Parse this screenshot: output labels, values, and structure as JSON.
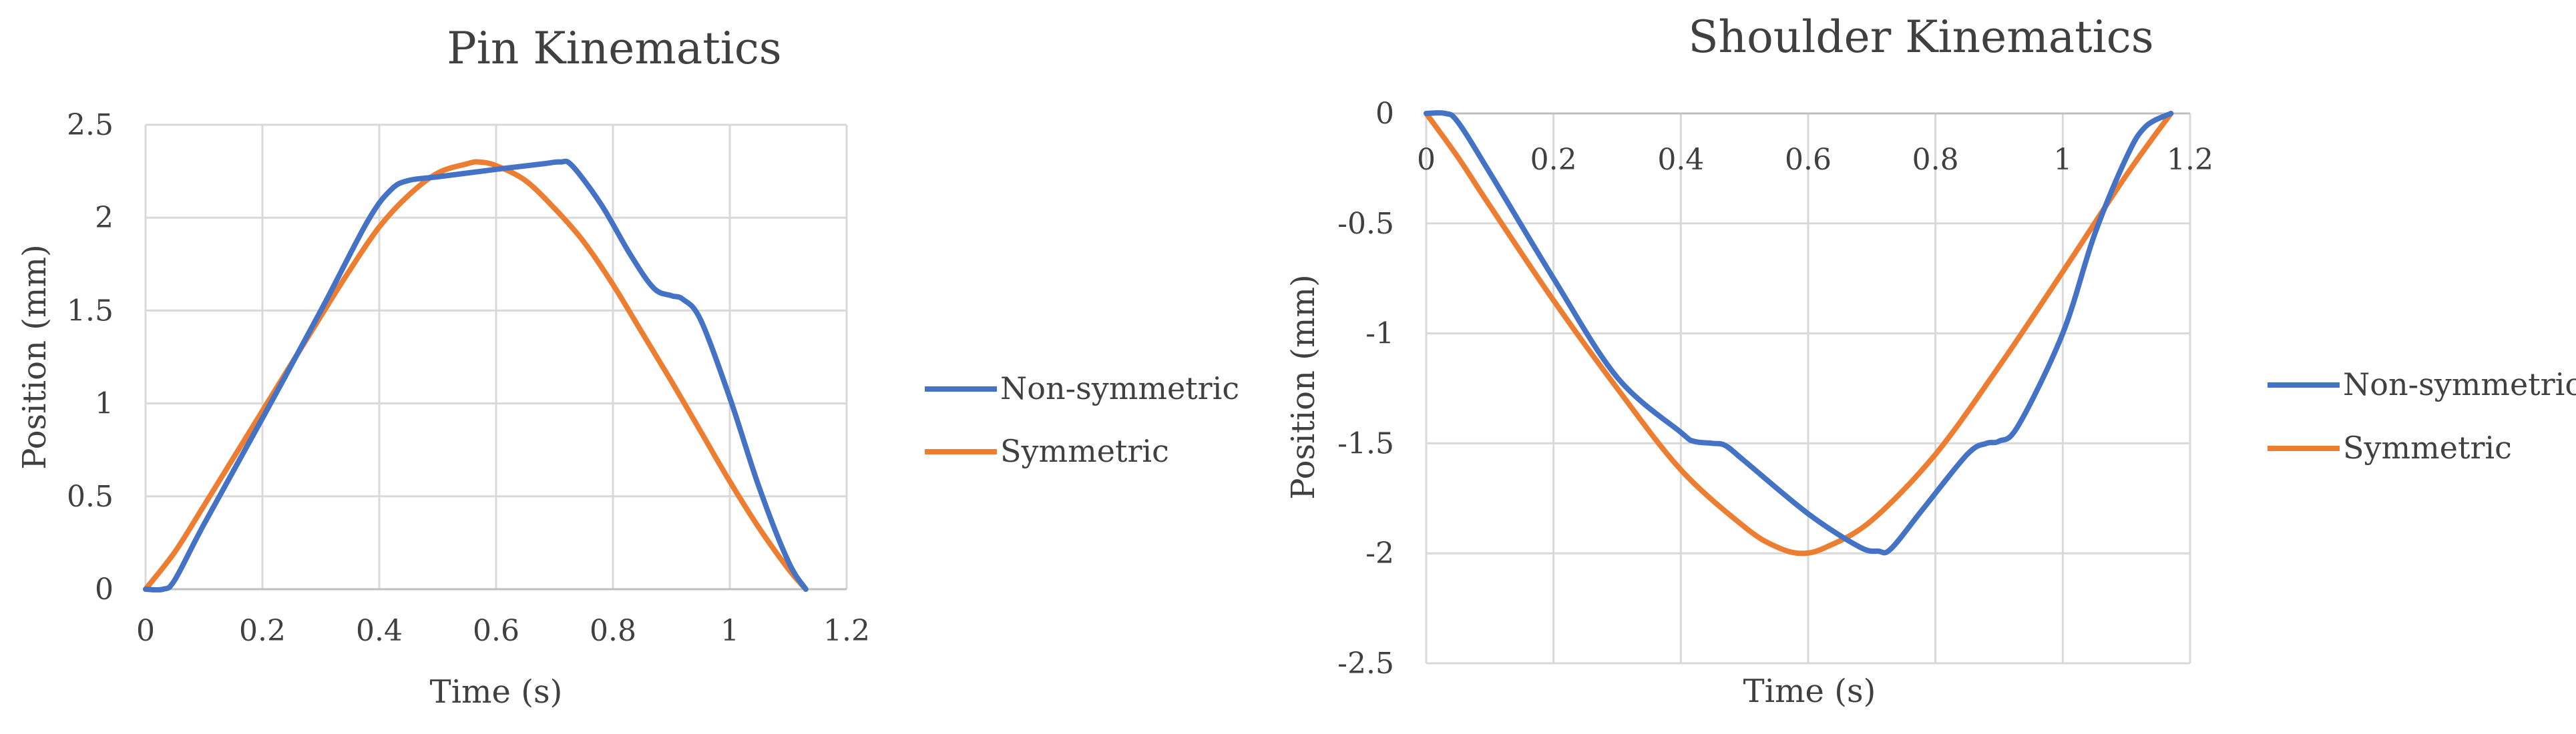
{
  "chart_data": [
    {
      "type": "line",
      "title": "Pin Kinematics",
      "xlabel": "Time (s)",
      "ylabel": "Position (mm)",
      "xlim": [
        0,
        1.2
      ],
      "ylim": [
        0,
        2.5
      ],
      "x_ticks": [
        "0",
        "0.2",
        "0.4",
        "0.6",
        "0.8",
        "1",
        "1.2"
      ],
      "y_ticks": [
        "0",
        "0.5",
        "1",
        "1.5",
        "2",
        "2.5"
      ],
      "grid": true,
      "legend_position": "right",
      "series": [
        {
          "name": "Non-symmetric",
          "color": "#4472c4",
          "x": [
            0,
            0.03,
            0.05,
            0.1,
            0.2,
            0.3,
            0.38,
            0.42,
            0.45,
            0.5,
            0.6,
            0.68,
            0.71,
            0.73,
            0.78,
            0.83,
            0.87,
            0.9,
            0.92,
            0.95,
            1.0,
            1.05,
            1.1,
            1.13
          ],
          "values": [
            0,
            0,
            0.05,
            0.35,
            0.92,
            1.5,
            1.98,
            2.15,
            2.2,
            2.22,
            2.26,
            2.29,
            2.3,
            2.28,
            2.07,
            1.8,
            1.62,
            1.58,
            1.56,
            1.45,
            1.03,
            0.55,
            0.15,
            0
          ]
        },
        {
          "name": "Symmetric",
          "color": "#ed7d31",
          "x": [
            0,
            0.05,
            0.1,
            0.2,
            0.3,
            0.35,
            0.4,
            0.45,
            0.5,
            0.55,
            0.57,
            0.6,
            0.65,
            0.7,
            0.75,
            0.8,
            0.85,
            0.9,
            0.95,
            1.0,
            1.05,
            1.1,
            1.13
          ],
          "values": [
            0,
            0.2,
            0.45,
            0.96,
            1.47,
            1.72,
            1.95,
            2.12,
            2.24,
            2.29,
            2.3,
            2.28,
            2.2,
            2.05,
            1.87,
            1.64,
            1.38,
            1.12,
            0.85,
            0.58,
            0.33,
            0.11,
            0
          ]
        }
      ]
    },
    {
      "type": "line",
      "title": "Shoulder Kinematics",
      "xlabel": "Time (s)",
      "ylabel": "Position (mm)",
      "xlim": [
        0,
        1.2
      ],
      "ylim": [
        -2.5,
        0
      ],
      "x_ticks": [
        "0",
        "0.2",
        "0.4",
        "0.6",
        "0.8",
        "1",
        "1.2"
      ],
      "y_ticks": [
        "0",
        "-0.5",
        "-1",
        "-1.5",
        "-2",
        "-2.5"
      ],
      "grid": true,
      "legend_position": "right",
      "series": [
        {
          "name": "Non-symmetric",
          "color": "#4472c4",
          "x": [
            0,
            0.03,
            0.05,
            0.1,
            0.2,
            0.3,
            0.4,
            0.42,
            0.45,
            0.47,
            0.5,
            0.6,
            0.68,
            0.71,
            0.73,
            0.78,
            0.85,
            0.88,
            0.9,
            0.93,
            1.0,
            1.05,
            1.1,
            1.13,
            1.17
          ],
          "values": [
            0,
            0,
            -0.04,
            -0.27,
            -0.75,
            -1.2,
            -1.45,
            -1.49,
            -1.5,
            -1.51,
            -1.58,
            -1.82,
            -1.97,
            -1.99,
            -1.98,
            -1.8,
            -1.55,
            -1.5,
            -1.49,
            -1.42,
            -1.0,
            -0.55,
            -0.2,
            -0.06,
            0
          ]
        },
        {
          "name": "Symmetric",
          "color": "#ed7d31",
          "x": [
            0,
            0.05,
            0.1,
            0.2,
            0.3,
            0.4,
            0.5,
            0.55,
            0.59,
            0.63,
            0.7,
            0.8,
            0.9,
            1.0,
            1.1,
            1.17
          ],
          "values": [
            0,
            -0.2,
            -0.42,
            -0.85,
            -1.25,
            -1.62,
            -1.88,
            -1.97,
            -2.0,
            -1.97,
            -1.85,
            -1.55,
            -1.15,
            -0.72,
            -0.28,
            0
          ]
        }
      ]
    }
  ]
}
